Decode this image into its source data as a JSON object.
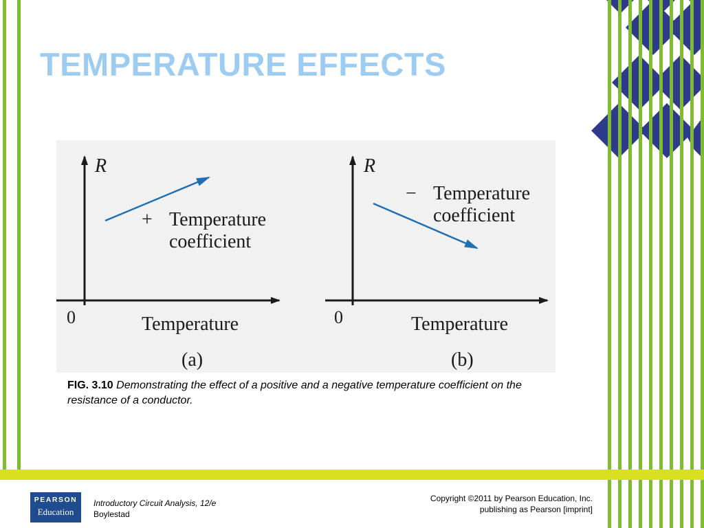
{
  "slide": {
    "title": "TEMPERATURE EFFECTS"
  },
  "figure": {
    "panel_a": {
      "y_axis_label": "R",
      "origin_label": "0",
      "x_axis_label": "Temperature",
      "sign": "+",
      "coeff_line1": "Temperature",
      "coeff_line2": "coefficient",
      "sublabel": "(a)"
    },
    "panel_b": {
      "y_axis_label": "R",
      "origin_label": "0",
      "x_axis_label": "Temperature",
      "sign": "−",
      "coeff_line1": "Temperature",
      "coeff_line2": "coefficient",
      "sublabel": "(b)"
    },
    "arrow_color": "#1f6fb5"
  },
  "caption": {
    "label": "FIG. 3.10",
    "text": "Demonstrating the effect of a positive and a negative temperature coefficient on the resistance of a conductor."
  },
  "footer": {
    "logo_line1": "PEARSON",
    "logo_line2": "Education",
    "book_title": "Introductory Circuit Analysis, 12/e",
    "book_author": "Boylestad",
    "copyright_line1": "Copyright ©2011 by Pearson Education, Inc.",
    "copyright_line2": "publishing as Pearson [imprint]"
  },
  "colors": {
    "title": "#9dccf2",
    "stripe_green": "#7fbc2e",
    "band_yellow": "#d8e021",
    "diamond_navy": "#2e3a8c",
    "logo_blue": "#1f4c8e"
  }
}
